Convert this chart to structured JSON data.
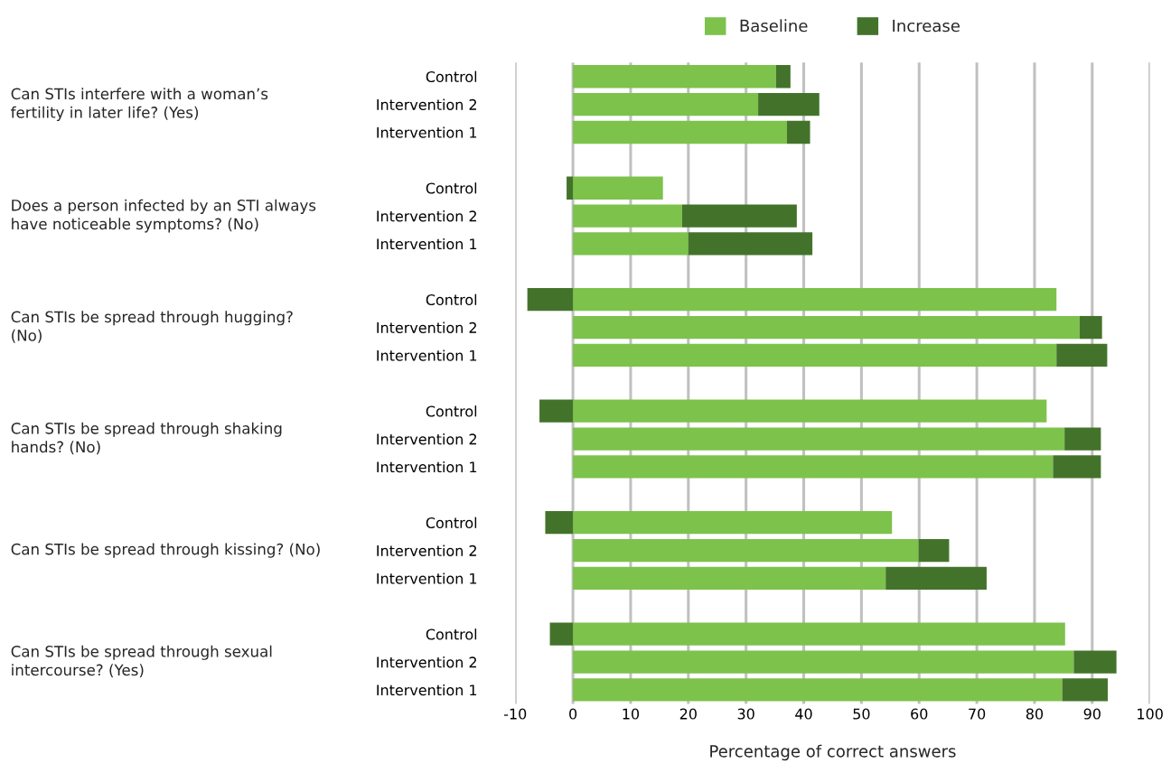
{
  "chart_data": {
    "type": "bar",
    "orientation": "horizontal",
    "stacked": true,
    "categories": [
      "Control",
      "Intervention 2",
      "Intervention 1",
      null,
      "Control",
      "Intervention 2",
      "Intervention 1",
      null,
      "Control",
      "Intervention 2",
      "Intervention 1",
      null,
      "Control",
      "Intervention 2",
      "Intervention 1",
      null,
      "Control",
      "Intervention 2",
      "Intervention 1",
      null,
      "Control",
      "Intervention 2",
      "Intervention 1"
    ],
    "series": [
      {
        "name": "Baseline",
        "color": "#7dc24b",
        "values": [
          35.2,
          32.1,
          37.1,
          null,
          15.6,
          18.9,
          20.0,
          null,
          83.8,
          87.8,
          83.8,
          null,
          82.1,
          85.2,
          83.2,
          null,
          55.3,
          59.9,
          54.2,
          null,
          85.3,
          86.8,
          84.8
        ]
      },
      {
        "name": "Increase",
        "color": "#43732b",
        "values": [
          2.5,
          10.6,
          4.0,
          null,
          -1.1,
          19.9,
          21.5,
          null,
          -7.9,
          3.9,
          8.8,
          null,
          -5.8,
          6.3,
          8.3,
          null,
          -4.8,
          5.3,
          17.5,
          null,
          -4.0,
          7.4,
          7.9
        ]
      }
    ],
    "xlim": [
      -10,
      100
    ],
    "xticks": [
      -10,
      0,
      10,
      20,
      30,
      40,
      50,
      60,
      70,
      80,
      90,
      100
    ],
    "xlabel": "Percentage of correct answers",
    "grid": "x",
    "legend": "top",
    "annotations": [
      "Can STIs interfere with a woman’s fertility in later life? (Yes)",
      "Does a person infected by an STI always have noticeable symptoms? (No)",
      "Can STIs be spread through hugging? (No)",
      "Can STIs be spread through shaking hands? (No)",
      "Can STIs be spread through kissing? (No)",
      "Can STIs be spread through sexual intercourse? (Yes)"
    ]
  }
}
